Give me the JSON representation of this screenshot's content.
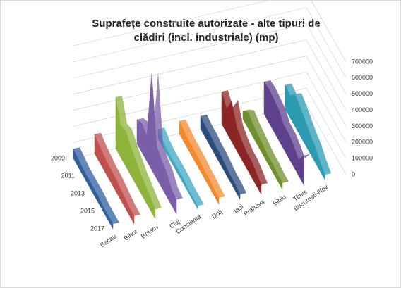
{
  "chart_data": {
    "type": "line3d",
    "title": [
      "Suprafețe construite autorizate - alte tipuri de",
      "clădiri (incl. industriale) (mp)"
    ],
    "categories": [
      "2009",
      null,
      "2011",
      null,
      "2013",
      null,
      "2015",
      null,
      "2017"
    ],
    "ylim": [
      0,
      700000
    ],
    "yticks": [
      0,
      100000,
      200000,
      300000,
      400000,
      500000,
      600000,
      700000
    ],
    "grid": true,
    "series": [
      {
        "name": "Bacau",
        "color": "#2f5f9e",
        "values": [
          60000,
          50000,
          40000,
          40000,
          40000,
          40000,
          30000,
          30000,
          30000
        ]
      },
      {
        "name": "Bihor",
        "color": "#c0504d",
        "values": [
          120000,
          100000,
          90000,
          80000,
          80000,
          70000,
          60000,
          50000,
          50000
        ]
      },
      {
        "name": "Brasov",
        "color": "#8db33b",
        "values": [
          320000,
          200000,
          220000,
          180000,
          150000,
          120000,
          100000,
          80000,
          60000
        ]
      },
      {
        "name": "Cluj",
        "color": "#7a5ea8",
        "values": [
          150000,
          180000,
          160000,
          600000,
          200000,
          170000,
          150000,
          100000,
          90000
        ]
      },
      {
        "name": "Constanta",
        "color": "#3fa7c2",
        "values": [
          60000,
          40000,
          30000,
          30000,
          30000,
          30000,
          20000,
          20000,
          20000
        ]
      },
      {
        "name": "Dolj",
        "color": "#f3892c",
        "values": [
          80000,
          70000,
          60000,
          60000,
          60000,
          50000,
          50000,
          40000,
          40000
        ]
      },
      {
        "name": "Iasi",
        "color": "#2c4c7c",
        "values": [
          80000,
          70000,
          70000,
          60000,
          60000,
          50000,
          40000,
          40000,
          30000
        ]
      },
      {
        "name": "Prahova",
        "color": "#8c2626",
        "values": [
          200000,
          150000,
          250000,
          150000,
          120000,
          100000,
          100000,
          80000,
          60000
        ]
      },
      {
        "name": "Sibiu",
        "color": "#6f8f2b",
        "values": [
          50000,
          100000,
          80000,
          70000,
          60000,
          50000,
          50000,
          40000,
          40000
        ]
      },
      {
        "name": "Timis",
        "color": "#5e408c",
        "values": [
          200000,
          210000,
          200000,
          190000,
          150000,
          150000,
          130000,
          100000,
          180000
        ]
      },
      {
        "name": "Bucuresti-Ilfov",
        "color": "#2b9bb1",
        "values": [
          150000,
          140000,
          200000,
          180000,
          150000,
          120000,
          100000,
          60000,
          30000
        ]
      }
    ]
  }
}
